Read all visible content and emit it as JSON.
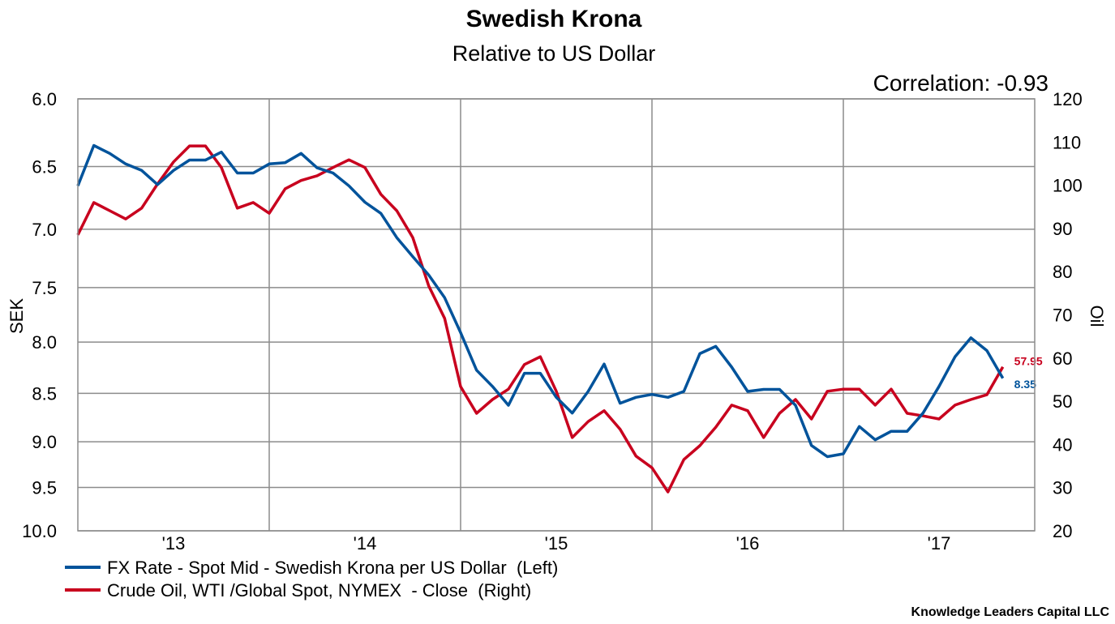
{
  "chart_data": {
    "type": "line",
    "title": "Swedish Krona",
    "subtitle": "Relative to US Dollar",
    "annotation": "Correlation: -0.93",
    "ylabel_left": "SEK",
    "ylabel_right": "Oil",
    "left_axis": {
      "range": [
        6.0,
        10.0
      ],
      "inverted": true,
      "scale": "log",
      "ticks": [
        "6.0",
        "6.5",
        "7.0",
        "7.5",
        "8.0",
        "8.5",
        "9.0",
        "9.5",
        "10.0"
      ]
    },
    "right_axis": {
      "range": [
        20,
        120
      ],
      "ticks": [
        "120",
        "110",
        "100",
        "90",
        "80",
        "70",
        "60",
        "50",
        "40",
        "30",
        "20"
      ]
    },
    "x_range": [
      "2013-01",
      "2018-01"
    ],
    "x_ticks": [
      "'13",
      "'14",
      "'15",
      "'16",
      "'17"
    ],
    "grid": true,
    "x": [
      "2013-01",
      "2013-02",
      "2013-03",
      "2013-04",
      "2013-05",
      "2013-06",
      "2013-07",
      "2013-08",
      "2013-09",
      "2013-10",
      "2013-11",
      "2013-12",
      "2014-01",
      "2014-02",
      "2014-03",
      "2014-04",
      "2014-05",
      "2014-06",
      "2014-07",
      "2014-08",
      "2014-09",
      "2014-10",
      "2014-11",
      "2014-12",
      "2015-01",
      "2015-02",
      "2015-03",
      "2015-04",
      "2015-05",
      "2015-06",
      "2015-07",
      "2015-08",
      "2015-09",
      "2015-10",
      "2015-11",
      "2015-12",
      "2016-01",
      "2016-02",
      "2016-03",
      "2016-04",
      "2016-05",
      "2016-06",
      "2016-07",
      "2016-08",
      "2016-09",
      "2016-10",
      "2016-11",
      "2016-12",
      "2017-01",
      "2017-02",
      "2017-03",
      "2017-04",
      "2017-05",
      "2017-06",
      "2017-07",
      "2017-08",
      "2017-09",
      "2017-10",
      "2017-11"
    ],
    "series": [
      {
        "name": "FX Rate - Spot Mid - Swedish Krona per US Dollar  (Left)",
        "axis": "left",
        "color": "#00539B",
        "last_label": "8.35",
        "values": [
          6.65,
          6.34,
          6.4,
          6.48,
          6.53,
          6.64,
          6.53,
          6.45,
          6.45,
          6.39,
          6.55,
          6.55,
          6.48,
          6.47,
          6.4,
          6.51,
          6.55,
          6.65,
          6.78,
          6.87,
          7.07,
          7.23,
          7.39,
          7.59,
          7.91,
          8.27,
          8.43,
          8.62,
          8.3,
          8.3,
          8.54,
          8.7,
          8.48,
          8.21,
          8.6,
          8.54,
          8.51,
          8.54,
          8.48,
          8.11,
          8.04,
          8.24,
          8.48,
          8.46,
          8.46,
          8.62,
          9.04,
          9.16,
          9.13,
          8.84,
          8.98,
          8.89,
          8.89,
          8.7,
          8.43,
          8.14,
          7.96,
          8.08,
          8.35
        ]
      },
      {
        "name": "Crude Oil, WTI /Global Spot, NYMEX  - Close  (Right)",
        "axis": "right",
        "color": "#C8001E",
        "last_label": "57.95",
        "values": [
          88.5,
          96.0,
          94.1,
          92.2,
          94.7,
          100.3,
          105.4,
          109.1,
          109.1,
          104.1,
          94.7,
          96.0,
          93.5,
          99.2,
          101.1,
          102.2,
          104.1,
          105.9,
          104.1,
          97.9,
          94.1,
          87.9,
          76.7,
          69.2,
          53.4,
          47.2,
          50.4,
          52.8,
          58.5,
          60.3,
          52.3,
          41.6,
          45.3,
          47.8,
          43.5,
          37.3,
          34.6,
          29.0,
          36.5,
          39.7,
          44.0,
          49.1,
          47.8,
          41.6,
          47.2,
          50.4,
          45.9,
          52.3,
          52.8,
          52.8,
          49.1,
          52.8,
          47.2,
          46.6,
          45.9,
          49.1,
          50.4,
          51.5,
          57.95
        ]
      }
    ],
    "legend_placement": "bottom-left",
    "footer": "Knowledge Leaders Capital LLC"
  }
}
